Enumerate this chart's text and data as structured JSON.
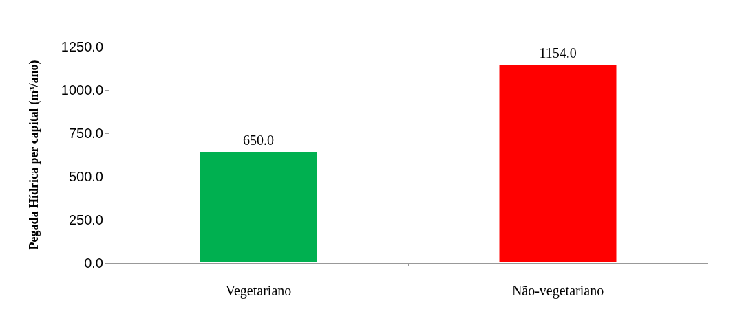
{
  "chart_data": {
    "type": "bar",
    "ylabel": "Pegada Hídrica per capital (m³/ano)",
    "categories": [
      "Vegetariano",
      "Não-vegetariano"
    ],
    "values": [
      650,
      1154
    ],
    "colors": [
      "#00b050",
      "#ff0000"
    ],
    "value_labels": [
      "650.0",
      "1154.0"
    ],
    "ylim": [
      0,
      1250
    ],
    "yticks": [
      {
        "value": 0,
        "label": "0.0"
      },
      {
        "value": 250,
        "label": "250.0"
      },
      {
        "value": 500,
        "label": "500.0"
      },
      {
        "value": 750,
        "label": "750.0"
      },
      {
        "value": 1000,
        "label": "1000.0"
      },
      {
        "value": 1250,
        "label": "1250.0"
      }
    ],
    "grid": false
  }
}
